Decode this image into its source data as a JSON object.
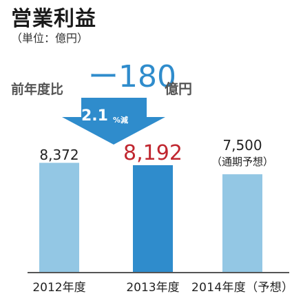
{
  "title": "営業利益",
  "unit": "（単位：億円）",
  "comparison": {
    "label": "前年度比",
    "value": "ー180",
    "unit": "億円",
    "percent_value": "2.1",
    "percent_unit": "%減"
  },
  "colors": {
    "bar_past": "#93c7e4",
    "bar_current": "#2f8ccc",
    "bar_forecast": "#93c7e4",
    "value_highlight": "#c0262f",
    "arrow": "#2f8ccc",
    "baseline": "#555555"
  },
  "chart_data": {
    "type": "bar",
    "title": "営業利益",
    "ylabel": "",
    "categories": [
      "2012年度",
      "2013年度",
      "2014年度（予想）"
    ],
    "values": [
      8372,
      8192,
      7500
    ],
    "value_labels": [
      "8,372",
      "8,192",
      "7,500"
    ],
    "value_notes": [
      "",
      "",
      "（通期予想）"
    ],
    "ylim": [
      0,
      8400
    ],
    "grid": false,
    "legend": "none"
  }
}
